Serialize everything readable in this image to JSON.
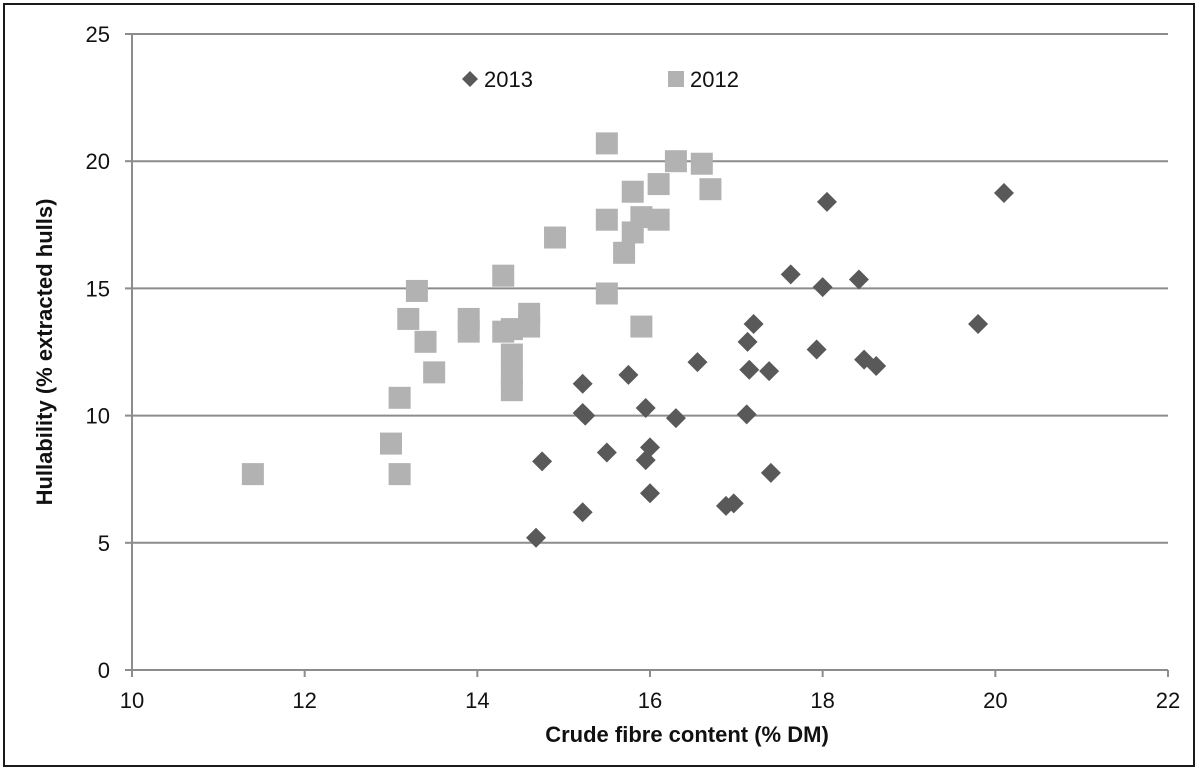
{
  "chart_data": {
    "type": "scatter",
    "title": "",
    "xlabel": "Crude fibre content (% DM)",
    "ylabel": "Hullability (% extracted hulls)",
    "xlim": [
      10,
      22
    ],
    "ylim": [
      0,
      25
    ],
    "xticks": [
      10,
      12,
      14,
      16,
      18,
      20,
      22
    ],
    "yticks": [
      0,
      5,
      10,
      15,
      20,
      25
    ],
    "grid": "horizontal",
    "legend_position": "top-center",
    "series": [
      {
        "name": "2013",
        "marker": "diamond",
        "color": "#595959",
        "points": [
          [
            14.68,
            5.2
          ],
          [
            14.75,
            8.2
          ],
          [
            15.22,
            6.2
          ],
          [
            15.22,
            11.25
          ],
          [
            15.22,
            10.1
          ],
          [
            15.25,
            10.0
          ],
          [
            15.5,
            8.55
          ],
          [
            15.75,
            11.6
          ],
          [
            15.95,
            10.3
          ],
          [
            15.95,
            8.25
          ],
          [
            16.0,
            8.75
          ],
          [
            16.0,
            6.95
          ],
          [
            16.3,
            9.9
          ],
          [
            16.55,
            12.1
          ],
          [
            16.88,
            6.45
          ],
          [
            16.97,
            6.55
          ],
          [
            17.12,
            10.05
          ],
          [
            17.13,
            12.9
          ],
          [
            17.15,
            11.8
          ],
          [
            17.2,
            13.6
          ],
          [
            17.38,
            11.75
          ],
          [
            17.4,
            7.75
          ],
          [
            17.63,
            15.55
          ],
          [
            17.93,
            12.6
          ],
          [
            18.0,
            15.05
          ],
          [
            18.05,
            18.4
          ],
          [
            18.42,
            15.35
          ],
          [
            18.48,
            12.2
          ],
          [
            18.62,
            11.95
          ],
          [
            19.8,
            13.6
          ],
          [
            20.1,
            18.75
          ]
        ]
      },
      {
        "name": "2012",
        "marker": "square",
        "color": "#b2b2b2",
        "points": [
          [
            11.4,
            7.7
          ],
          [
            13.0,
            8.9
          ],
          [
            13.1,
            10.7
          ],
          [
            13.1,
            7.7
          ],
          [
            13.2,
            13.8
          ],
          [
            13.3,
            14.9
          ],
          [
            13.4,
            12.9
          ],
          [
            13.5,
            11.7
          ],
          [
            13.9,
            13.8
          ],
          [
            13.9,
            13.3
          ],
          [
            14.3,
            15.5
          ],
          [
            14.3,
            13.3
          ],
          [
            14.4,
            13.4
          ],
          [
            14.4,
            12.4
          ],
          [
            14.4,
            11.6
          ],
          [
            14.4,
            11.0
          ],
          [
            14.6,
            14.0
          ],
          [
            14.6,
            13.5
          ],
          [
            14.9,
            17.0
          ],
          [
            15.5,
            20.7
          ],
          [
            15.5,
            17.7
          ],
          [
            15.5,
            14.8
          ],
          [
            15.7,
            16.4
          ],
          [
            15.8,
            18.8
          ],
          [
            15.8,
            17.2
          ],
          [
            15.9,
            17.8
          ],
          [
            15.9,
            13.5
          ],
          [
            16.1,
            19.1
          ],
          [
            16.1,
            17.7
          ],
          [
            16.3,
            20.0
          ],
          [
            16.6,
            19.9
          ],
          [
            16.7,
            18.9
          ]
        ]
      }
    ]
  }
}
